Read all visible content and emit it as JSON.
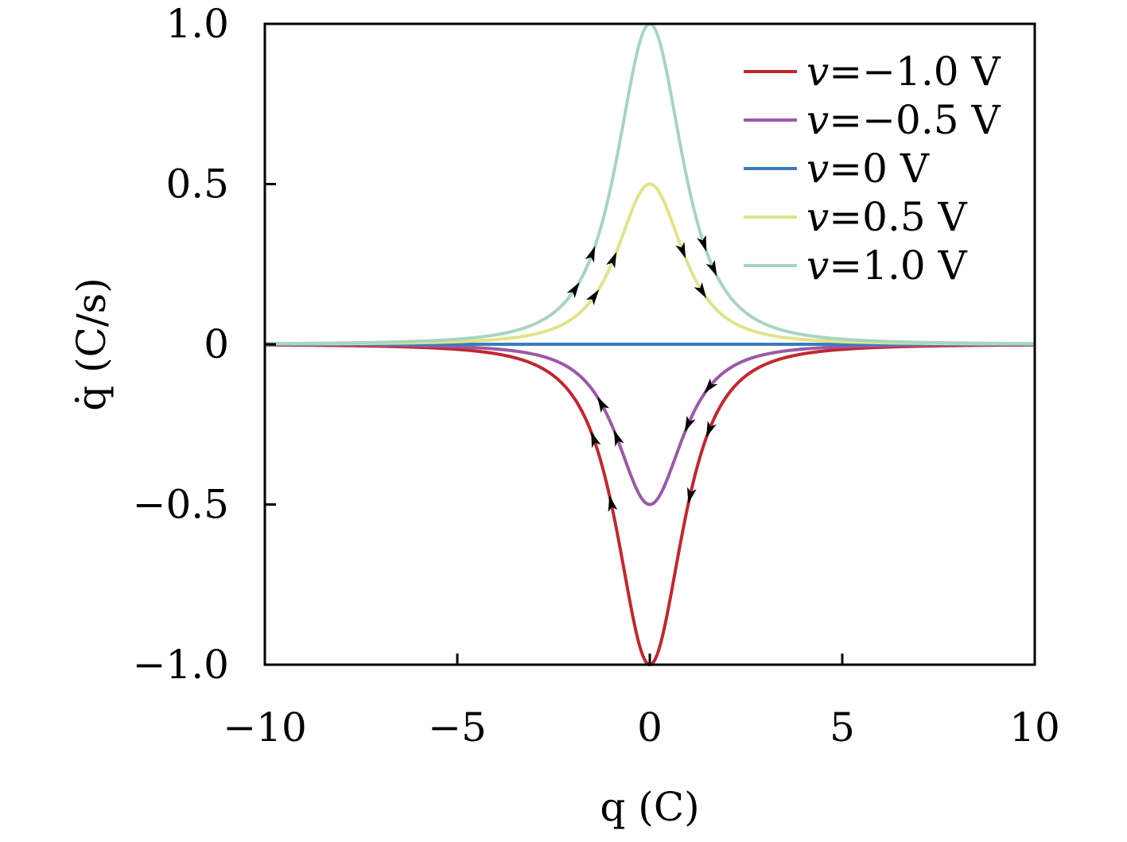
{
  "chart_data": {
    "type": "line",
    "xlabel": "q (C)",
    "ylabel": "q̇ (C/s)",
    "xlim": [
      -10,
      10
    ],
    "ylim": [
      -1.0,
      1.0
    ],
    "x_ticks": [
      -10,
      -5,
      0,
      5,
      10
    ],
    "x_tick_labels": [
      "−10",
      "−5",
      "0",
      "5",
      "10"
    ],
    "y_ticks": [
      -1.0,
      -0.5,
      0,
      0.5,
      1.0
    ],
    "y_tick_labels": [
      "−1.0",
      "−0.5",
      "0",
      "0.5",
      "1.0"
    ],
    "grid": false,
    "legend_position": "top-right",
    "curve_model": "v * (1 / (1 + (q/1.3)^2))^1.5",
    "x": [
      -10,
      -8,
      -6,
      -5,
      -4,
      -3,
      -2.5,
      -2,
      -1.5,
      -1.25,
      -1,
      -0.75,
      -0.5,
      -0.25,
      0,
      0.25,
      0.5,
      0.75,
      1,
      1.25,
      1.5,
      2,
      2.5,
      3,
      4,
      5,
      6,
      8,
      10
    ],
    "series": [
      {
        "name": "v=−1.0 V",
        "v": -1.0,
        "color": "#c1272d"
      },
      {
        "name": "v=−0.5 V",
        "v": -0.5,
        "color": "#9b59a8"
      },
      {
        "name": "v=0 V",
        "v": 0,
        "color": "#3a7dbb"
      },
      {
        "name": "v=0.5 V",
        "v": 0.5,
        "color": "#e0e38a"
      },
      {
        "name": "v=1.0 V",
        "v": 1.0,
        "color": "#a6d6bd"
      }
    ],
    "legend": [
      {
        "prefix": "v",
        "suffix": "=−1.0 V"
      },
      {
        "prefix": "v",
        "suffix": "=−0.5 V"
      },
      {
        "prefix": "v",
        "suffix": "=0 V"
      },
      {
        "prefix": "v",
        "suffix": "=0.5 V"
      },
      {
        "prefix": "v",
        "suffix": "=1.0 V"
      }
    ],
    "arrows": [
      {
        "series": 4,
        "q": -1.5,
        "direction": "up"
      },
      {
        "series": 4,
        "q": -1.95,
        "direction": "up"
      },
      {
        "series": 4,
        "q": 1.4,
        "direction": "down"
      },
      {
        "series": 4,
        "q": 1.65,
        "direction": "down"
      },
      {
        "series": 3,
        "q": -0.95,
        "direction": "up"
      },
      {
        "series": 3,
        "q": -1.45,
        "direction": "up"
      },
      {
        "series": 3,
        "q": 0.85,
        "direction": "down"
      },
      {
        "series": 3,
        "q": 1.35,
        "direction": "down"
      },
      {
        "series": 1,
        "q": -1.25,
        "direction": "up"
      },
      {
        "series": 1,
        "q": -0.85,
        "direction": "up"
      },
      {
        "series": 1,
        "q": 1.0,
        "direction": "down"
      },
      {
        "series": 1,
        "q": 1.55,
        "direction": "down"
      },
      {
        "series": 0,
        "q": -1.45,
        "direction": "up"
      },
      {
        "series": 0,
        "q": -1.0,
        "direction": "up"
      },
      {
        "series": 0,
        "q": 1.05,
        "direction": "down"
      },
      {
        "series": 0,
        "q": 1.55,
        "direction": "down"
      }
    ]
  }
}
